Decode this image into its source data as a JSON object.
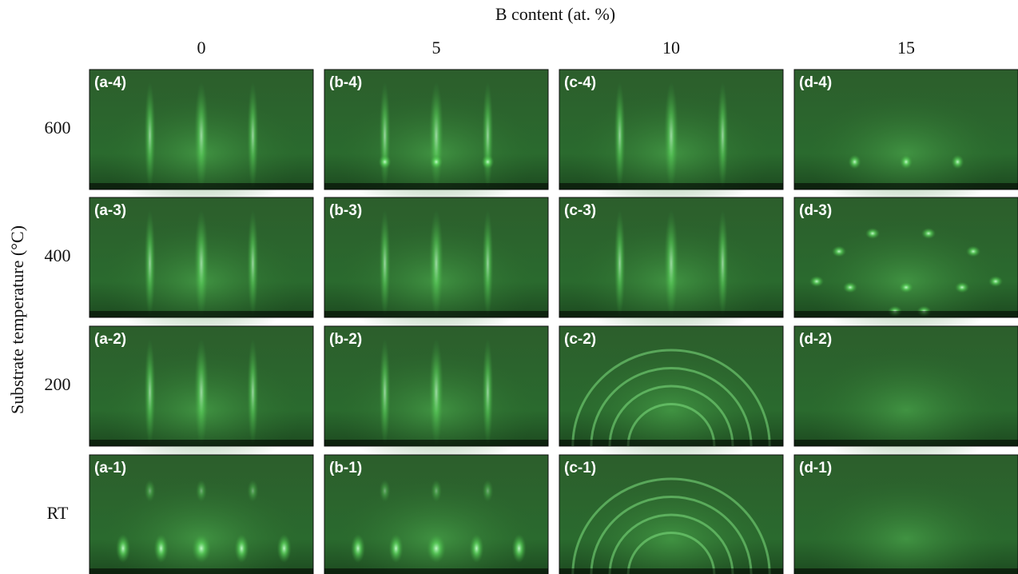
{
  "x_label": "B content (at. %)",
  "columns": [
    "0",
    "5",
    "10",
    "15"
  ],
  "y_label": "Substrate temperature (°C)",
  "rows": [
    "600",
    "400",
    "200",
    "RT"
  ],
  "panels": [
    [
      "(a-4)",
      "(b-4)",
      "(c-4)",
      "(d-4)"
    ],
    [
      "(a-3)",
      "(b-3)",
      "(c-3)",
      "(d-3)"
    ],
    [
      "(a-2)",
      "(b-2)",
      "(c-2)",
      "(d-2)"
    ],
    [
      "(a-1)",
      "(b-1)",
      "(c-1)",
      "(d-1)"
    ]
  ]
}
